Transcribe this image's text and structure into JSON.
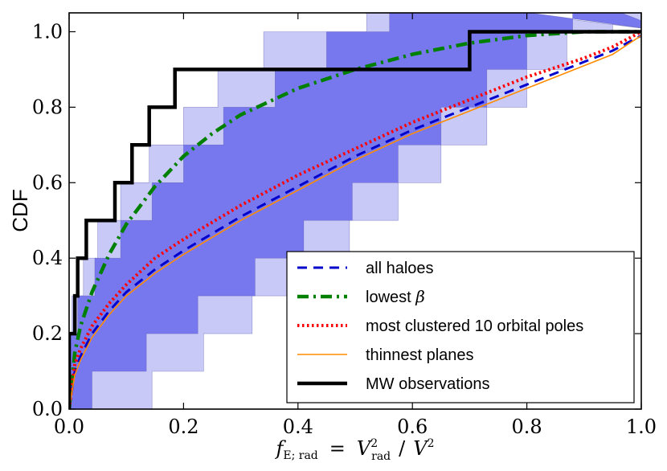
{
  "chart_data": {
    "type": "line",
    "title": "",
    "xlabel": "f_E; rad = V_rad^2 / V^2",
    "xlabel_parts": {
      "f": "f",
      "f_sub": "E; rad",
      "eq": "=",
      "v": "V",
      "v_sup": "2",
      "v_sub": "rad",
      "slash": "/",
      "v2": "V",
      "v2_sup": "2"
    },
    "ylabel": "CDF",
    "xlim": [
      0.0,
      1.0
    ],
    "ylim": [
      0.0,
      1.05
    ],
    "xticks": [
      "0.0",
      "0.2",
      "0.4",
      "0.6",
      "0.8",
      "1.0"
    ],
    "yticks": [
      "0.0",
      "0.2",
      "0.4",
      "0.6",
      "0.8",
      "1.0"
    ],
    "xtick_values": [
      0.0,
      0.2,
      0.4,
      0.6,
      0.8,
      1.0
    ],
    "ytick_values": [
      0.0,
      0.2,
      0.4,
      0.6,
      0.8,
      1.0
    ],
    "bands": [
      {
        "name": "outer band (light)",
        "color": "#c9c9f7",
        "upper_steps": [
          0.0,
          0.0,
          0.005,
          0.025,
          0.05,
          0.09,
          0.14,
          0.2,
          0.26,
          0.34,
          0.52
        ],
        "lower_steps": [
          0.145,
          0.235,
          0.32,
          0.405,
          0.49,
          0.575,
          0.65,
          0.73,
          0.8,
          0.87,
          0.95
        ]
      },
      {
        "name": "inner band (dark)",
        "color": "#7878ee",
        "upper_steps": [
          0.0,
          0.0,
          0.015,
          0.045,
          0.09,
          0.145,
          0.2,
          0.27,
          0.36,
          0.45,
          0.56
        ],
        "lower_steps": [
          0.04,
          0.135,
          0.225,
          0.325,
          0.41,
          0.495,
          0.575,
          0.65,
          0.73,
          0.8,
          0.88
        ]
      }
    ],
    "series": [
      {
        "name": "all haloes",
        "color": "#0000cc",
        "style": "dashed",
        "x": [
          0.0,
          0.01,
          0.02,
          0.04,
          0.07,
          0.1,
          0.15,
          0.2,
          0.3,
          0.4,
          0.5,
          0.6,
          0.7,
          0.8,
          0.9,
          0.95,
          1.0
        ],
        "y": [
          0.0,
          0.1,
          0.14,
          0.2,
          0.26,
          0.31,
          0.37,
          0.42,
          0.51,
          0.59,
          0.67,
          0.74,
          0.8,
          0.86,
          0.92,
          0.95,
          0.99
        ]
      },
      {
        "name": "lowest β",
        "color": "#008000",
        "style": "dashdot",
        "x": [
          0.0,
          0.01,
          0.02,
          0.04,
          0.07,
          0.1,
          0.15,
          0.2,
          0.25,
          0.3,
          0.4,
          0.5,
          0.6,
          0.7,
          0.8,
          0.9,
          1.0
        ],
        "y": [
          0.0,
          0.15,
          0.22,
          0.31,
          0.41,
          0.49,
          0.59,
          0.67,
          0.73,
          0.78,
          0.85,
          0.9,
          0.94,
          0.97,
          0.99,
          1.0,
          1.0
        ]
      },
      {
        "name": "most clustered 10 orbital poles",
        "color": "#ff0000",
        "style": "dotted",
        "x": [
          0.0,
          0.01,
          0.02,
          0.04,
          0.07,
          0.1,
          0.15,
          0.2,
          0.3,
          0.4,
          0.5,
          0.6,
          0.7,
          0.8,
          0.9,
          0.95,
          1.0
        ],
        "y": [
          0.0,
          0.12,
          0.16,
          0.22,
          0.28,
          0.33,
          0.4,
          0.45,
          0.54,
          0.62,
          0.69,
          0.76,
          0.82,
          0.88,
          0.93,
          0.96,
          1.0
        ]
      },
      {
        "name": "thinnest planes",
        "color": "#ff8c00",
        "style": "solid",
        "x": [
          0.0,
          0.01,
          0.02,
          0.04,
          0.07,
          0.1,
          0.15,
          0.2,
          0.3,
          0.4,
          0.5,
          0.6,
          0.7,
          0.8,
          0.9,
          0.95,
          1.0
        ],
        "y": [
          0.0,
          0.09,
          0.13,
          0.19,
          0.25,
          0.3,
          0.36,
          0.41,
          0.5,
          0.58,
          0.66,
          0.73,
          0.79,
          0.85,
          0.91,
          0.94,
          0.99
        ]
      },
      {
        "name": "MW observations",
        "color": "#000000",
        "style": "step",
        "x": [
          0.0,
          0.01,
          0.015,
          0.03,
          0.08,
          0.11,
          0.14,
          0.185,
          0.7,
          0.99
        ],
        "y": [
          0.2,
          0.3,
          0.4,
          0.5,
          0.6,
          0.7,
          0.8,
          0.9,
          1.0,
          1.0
        ]
      }
    ],
    "legend": {
      "position": "bottom-right",
      "entries": [
        "all haloes",
        "lowest β",
        "most clustered 10 orbital poles",
        "thinnest planes",
        "MW observations"
      ]
    }
  }
}
